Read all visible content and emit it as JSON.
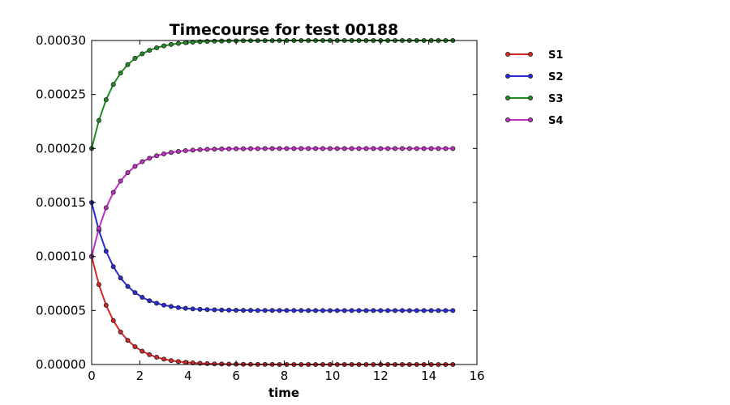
{
  "chart_data": {
    "type": "line",
    "title": "Timecourse for test 00188",
    "xlabel": "time",
    "ylabel": "",
    "xlim": [
      0,
      16
    ],
    "ylim": [
      0,
      0.0003
    ],
    "x_ticks": [
      "0",
      "2",
      "4",
      "6",
      "8",
      "10",
      "12",
      "14",
      "16"
    ],
    "y_ticks": [
      "0.00000",
      "0.00005",
      "0.00010",
      "0.00015",
      "0.00020",
      "0.00025",
      "0.00030"
    ],
    "grid": false,
    "legend_position": "outside-right",
    "x": [
      0,
      0.3,
      0.6,
      0.9,
      1.2,
      1.5,
      1.8,
      2.1,
      2.4,
      2.7,
      3,
      3.3,
      3.6,
      3.9,
      4.2,
      4.5,
      4.8,
      5.1,
      5.4,
      5.7,
      6,
      6.3,
      6.6,
      6.9,
      7.2,
      7.5,
      7.8,
      8.1,
      8.4,
      8.7,
      9,
      9.3,
      9.6,
      9.9,
      10.2,
      10.5,
      10.8,
      11.1,
      11.4,
      11.7,
      12,
      12.3,
      12.6,
      12.9,
      13.2,
      13.5,
      13.8,
      14.1,
      14.4,
      14.7,
      15
    ],
    "series": [
      {
        "name": "S1",
        "color": "#d62728",
        "values": [
          0.0001,
          7.408e-05,
          5.488e-05,
          4.066e-05,
          3.012e-05,
          2.231e-05,
          1.653e-05,
          1.225e-05,
          9.07e-06,
          6.72e-06,
          4.98e-06,
          3.69e-06,
          2.73e-06,
          2.02e-06,
          1.5e-06,
          1.11e-06,
          8.2e-07,
          6.1e-07,
          4.5e-07,
          3.3e-07,
          2.5e-07,
          1.8e-07,
          1.4e-07,
          1e-07,
          7e-08,
          6e-08,
          4e-08,
          3e-08,
          2e-08,
          2e-08,
          1e-08,
          1e-08,
          1e-08,
          1e-08,
          0,
          0,
          0,
          0,
          0,
          0,
          0,
          0,
          0,
          0,
          0,
          0,
          0,
          0,
          0,
          0,
          0
        ]
      },
      {
        "name": "S2",
        "color": "#2a2ad6",
        "values": [
          0.00015,
          0.00012408,
          0.00010488,
          9.066e-05,
          8.012e-05,
          7.231e-05,
          6.653e-05,
          6.225e-05,
          5.907e-05,
          5.672e-05,
          5.498e-05,
          5.369e-05,
          5.273e-05,
          5.202e-05,
          5.15e-05,
          5.111e-05,
          5.082e-05,
          5.061e-05,
          5.045e-05,
          5.033e-05,
          5.025e-05,
          5.018e-05,
          5.014e-05,
          5.01e-05,
          5.007e-05,
          5.006e-05,
          5.004e-05,
          5.003e-05,
          5.002e-05,
          5.002e-05,
          5.001e-05,
          5.001e-05,
          5.001e-05,
          5.001e-05,
          5e-05,
          5e-05,
          5e-05,
          5e-05,
          5e-05,
          5e-05,
          5e-05,
          5e-05,
          5e-05,
          5e-05,
          5e-05,
          5e-05,
          5e-05,
          5e-05,
          5e-05,
          5e-05,
          5e-05
        ]
      },
      {
        "name": "S3",
        "color": "#228b22",
        "values": [
          0.0002,
          0.00022592,
          0.00024512,
          0.00025934,
          0.00026988,
          0.00027769,
          0.00028347,
          0.00028775,
          0.00029093,
          0.00029328,
          0.00029502,
          0.00029631,
          0.00029727,
          0.00029798,
          0.0002985,
          0.00029889,
          0.00029918,
          0.00029939,
          0.00029955,
          0.00029967,
          0.00029975,
          0.00029982,
          0.00029986,
          0.0002999,
          0.00029993,
          0.00029994,
          0.00029996,
          0.00029997,
          0.00029998,
          0.00029998,
          0.00029999,
          0.00029999,
          0.00029999,
          0.00029999,
          0.0003,
          0.0003,
          0.0003,
          0.0003,
          0.0003,
          0.0003,
          0.0003,
          0.0003,
          0.0003,
          0.0003,
          0.0003,
          0.0003,
          0.0003,
          0.0003,
          0.0003,
          0.0003,
          0.0003
        ]
      },
      {
        "name": "S4",
        "color": "#c030c0",
        "values": [
          0.0001,
          0.00012592,
          0.00014512,
          0.00015934,
          0.00016988,
          0.00017769,
          0.00018347,
          0.00018775,
          0.00019093,
          0.00019328,
          0.00019502,
          0.00019631,
          0.00019727,
          0.00019798,
          0.0001985,
          0.00019889,
          0.00019918,
          0.00019939,
          0.00019955,
          0.00019967,
          0.00019975,
          0.00019982,
          0.00019986,
          0.0001999,
          0.00019993,
          0.00019994,
          0.00019996,
          0.00019997,
          0.00019998,
          0.00019998,
          0.00019999,
          0.00019999,
          0.00019999,
          0.00019999,
          0.0002,
          0.0002,
          0.0002,
          0.0002,
          0.0002,
          0.0002,
          0.0002,
          0.0002,
          0.0002,
          0.0002,
          0.0002,
          0.0002,
          0.0002,
          0.0002,
          0.0002,
          0.0002,
          0.0002
        ]
      }
    ]
  }
}
